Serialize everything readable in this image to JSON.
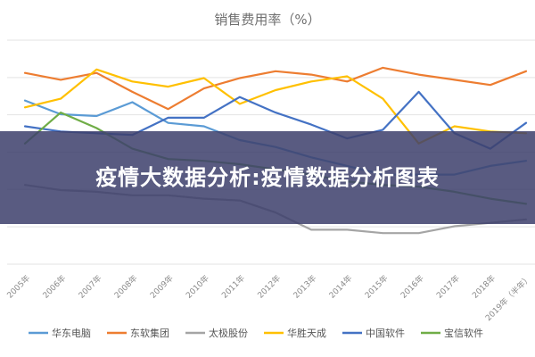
{
  "chart_data": {
    "type": "line",
    "title": "销售费用率（%）",
    "categories": [
      "2005年",
      "2006年",
      "2007年",
      "2008年",
      "2009年",
      "2010年",
      "2011年",
      "2012年",
      "2013年",
      "2014年",
      "2015年",
      "2016年",
      "2017年",
      "2018年",
      "2019年（半年）"
    ],
    "series": [
      {
        "name": "华东电脑",
        "color": "#5b9bd5",
        "values": [
          95,
          87,
          86,
          94,
          82,
          80,
          72,
          68,
          62,
          57,
          52,
          52,
          52,
          57,
          60
        ]
      },
      {
        "name": "东软集团",
        "color": "#ed7d31",
        "values": [
          111,
          107,
          111,
          100,
          90,
          102,
          108,
          112,
          110,
          106,
          114,
          110,
          107,
          104,
          112
        ]
      },
      {
        "name": "太极股份",
        "color": "#a5a5a5",
        "values": [
          46,
          43,
          42,
          40,
          40,
          38,
          37,
          30,
          20,
          20,
          18,
          18,
          22,
          24,
          26
        ]
      },
      {
        "name": "华胜天成",
        "color": "#ffc000",
        "values": [
          91,
          96,
          113,
          106,
          103,
          108,
          93,
          101,
          106,
          109,
          96,
          70,
          80,
          77,
          76
        ]
      },
      {
        "name": "中国软件",
        "color": "#4472c4",
        "values": [
          80,
          77,
          76,
          75,
          85,
          85,
          97,
          88,
          81,
          73,
          78,
          100,
          76,
          67,
          82
        ]
      },
      {
        "name": "宝信软件",
        "color": "#70ad47",
        "values": [
          70,
          88,
          79,
          67,
          61,
          60,
          58,
          55,
          52,
          48,
          46,
          45,
          42,
          38,
          35
        ]
      }
    ],
    "ylim": [
      0,
      130
    ],
    "grid": true,
    "legend": "bottom"
  },
  "banner": {
    "text": "疫情大数据分析:疫情数据分析图表"
  }
}
